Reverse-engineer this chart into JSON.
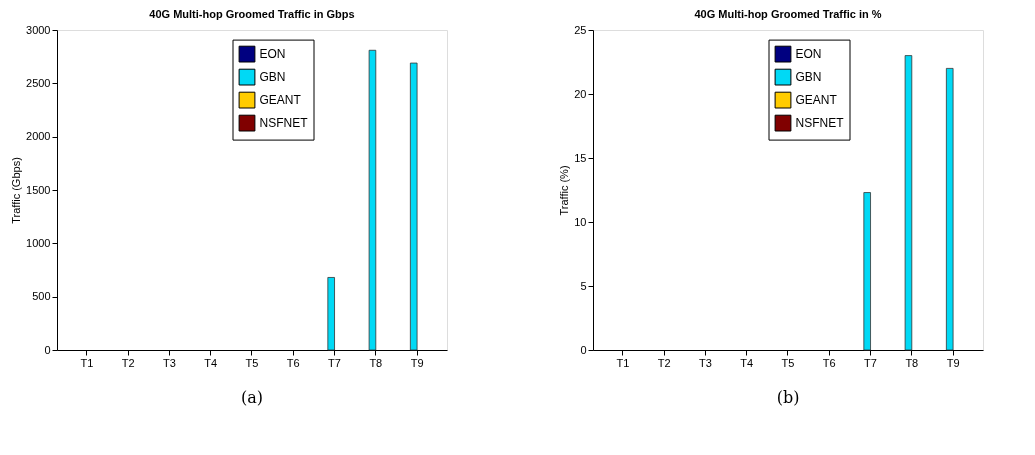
{
  "chart_data": [
    {
      "type": "bar",
      "title": "40G Multi-hop Groomed Traffic in Gbps",
      "ylabel": "Traffic (Gbps)",
      "categories": [
        "T1",
        "T2",
        "T3",
        "T4",
        "T5",
        "T6",
        "T7",
        "T8",
        "T9"
      ],
      "series": [
        {
          "name": "EON",
          "color": "#000080",
          "values": [
            0,
            0,
            0,
            0,
            0,
            0,
            0,
            0,
            0
          ]
        },
        {
          "name": "GBN",
          "color": "#00d9f5",
          "values": [
            0,
            0,
            0,
            0,
            0,
            0,
            680,
            2810,
            2690
          ]
        },
        {
          "name": "GEANT",
          "color": "#ffcc00",
          "values": [
            0,
            0,
            0,
            0,
            0,
            0,
            0,
            0,
            0
          ]
        },
        {
          "name": "NSFNET",
          "color": "#800000",
          "values": [
            0,
            0,
            0,
            0,
            0,
            0,
            0,
            0,
            0
          ]
        }
      ],
      "ylim": [
        0,
        3000
      ],
      "yticks": [
        0,
        500,
        1000,
        1500,
        2000,
        2500,
        3000
      ],
      "grid": false,
      "legend": "top right",
      "annotations": [
        "(a)"
      ]
    },
    {
      "type": "bar",
      "title": "40G Multi-hop Groomed Traffic in %",
      "ylabel": "Traffic (%)",
      "categories": [
        "T1",
        "T2",
        "T3",
        "T4",
        "T5",
        "T6",
        "T7",
        "T8",
        "T9"
      ],
      "series": [
        {
          "name": "EON",
          "color": "#000080",
          "values": [
            0,
            0,
            0,
            0,
            0,
            0,
            0,
            0,
            0
          ]
        },
        {
          "name": "GBN",
          "color": "#00d9f5",
          "values": [
            0,
            0,
            0,
            0,
            0,
            0,
            12.3,
            23,
            22
          ]
        },
        {
          "name": "GEANT",
          "color": "#ffcc00",
          "values": [
            0,
            0,
            0,
            0,
            0,
            0,
            0,
            0,
            0
          ]
        },
        {
          "name": "NSFNET",
          "color": "#800000",
          "values": [
            0,
            0,
            0,
            0,
            0,
            0,
            0,
            0,
            0
          ]
        }
      ],
      "ylim": [
        0,
        25
      ],
      "yticks": [
        0,
        5,
        10,
        15,
        20,
        25
      ],
      "grid": false,
      "legend": "top right",
      "annotations": [
        "(b)"
      ]
    }
  ]
}
